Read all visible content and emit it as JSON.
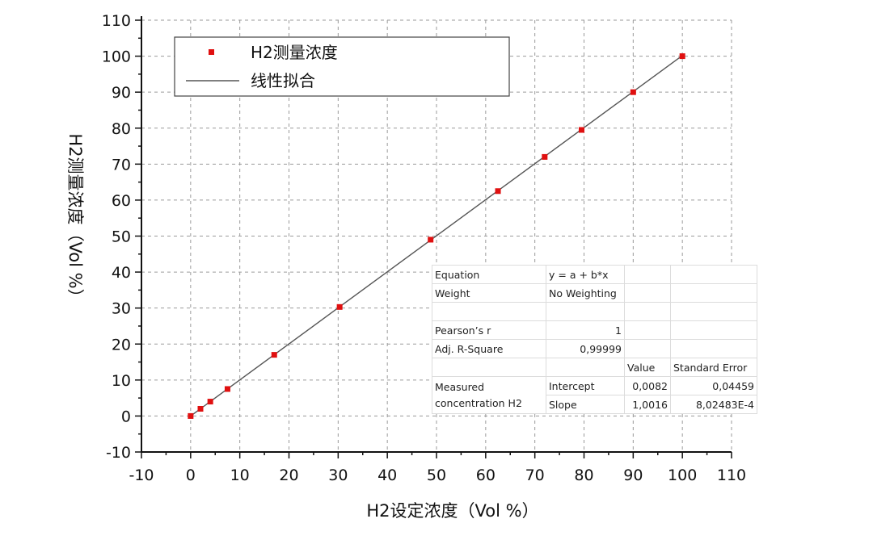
{
  "chart_data": {
    "type": "scatter",
    "xlabel": "H2设定浓度（Vol %）",
    "ylabel": "H2测量浓度（Vol %）",
    "xlim": [
      -10,
      110
    ],
    "ylim": [
      -10,
      110
    ],
    "xticks": [
      "-10",
      "0",
      "10",
      "20",
      "30",
      "40",
      "50",
      "60",
      "70",
      "80",
      "90",
      "100",
      "110"
    ],
    "yticks": [
      "110",
      "100",
      "90",
      "80",
      "70",
      "60",
      "50",
      "40",
      "30",
      "20",
      "10",
      "0",
      "-10"
    ],
    "grid": true,
    "legend_position": "top-left",
    "series": [
      {
        "name": "H2测量浓度",
        "kind": "points",
        "color": "#e01010",
        "x": [
          0,
          2,
          4,
          7.5,
          17,
          30.3,
          48.8,
          62.5,
          72,
          79.5,
          90,
          100
        ],
        "y": [
          0,
          2,
          4,
          7.5,
          17,
          30.3,
          49,
          62.5,
          72,
          79.5,
          90,
          100
        ]
      },
      {
        "name": "线性拟合",
        "kind": "line",
        "color": "#555555",
        "intercept": 0.0082,
        "slope": 1.0016,
        "x_range": [
          0,
          100
        ]
      }
    ]
  },
  "fit_table": {
    "equation_label": "Equation",
    "equation_value": "y = a + b*x",
    "weight_label": "Weight",
    "weight_value": "No Weighting",
    "pearson_label": "Pearson’s r",
    "pearson_value": "1",
    "adjr_label": "Adj. R-Square",
    "adjr_value": "0,99999",
    "col_value": "Value",
    "col_stderr": "Standard Error",
    "row_label_line1": "Measured",
    "row_label_line2": "concentration H2",
    "intercept_label": "Intercept",
    "intercept_value": "0,0082",
    "intercept_se": "0,04459",
    "slope_label": "Slope",
    "slope_value": "1,0016",
    "slope_se": "8,02483E-4"
  }
}
